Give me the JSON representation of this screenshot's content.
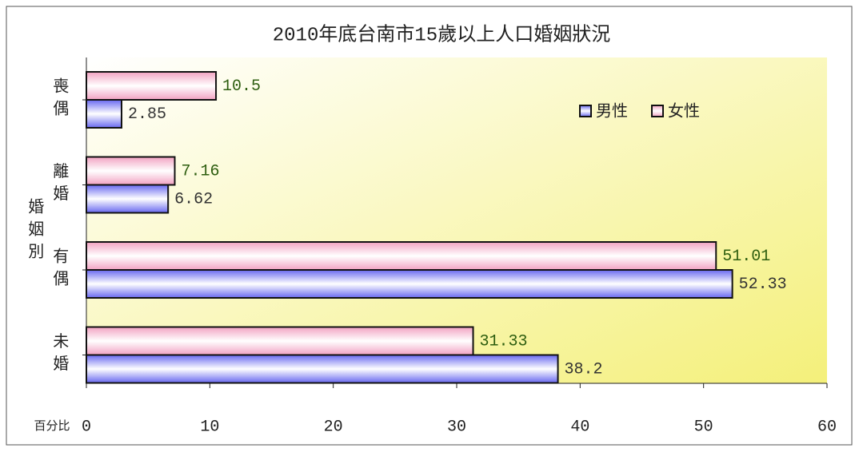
{
  "chart_data": {
    "type": "barh",
    "title": "2010年底台南市15歲以上人口婚姻狀況",
    "ylabel": "婚姻別",
    "xlabel": "百分比",
    "categories": [
      "喪偶",
      "離婚",
      "有偶",
      "未婚"
    ],
    "series": [
      {
        "name": "男性",
        "color": "#6868f0",
        "label_color": "#333333",
        "values": [
          2.85,
          6.62,
          52.33,
          38.2
        ]
      },
      {
        "name": "女性",
        "color": "#f2a2c2",
        "label_color": "#2e5e10",
        "values": [
          10.5,
          7.16,
          51.01,
          31.33
        ]
      }
    ],
    "xlim": [
      0,
      60
    ],
    "xticks": [
      0,
      10,
      20,
      30,
      40,
      50,
      60
    ],
    "legend": "upper right"
  }
}
